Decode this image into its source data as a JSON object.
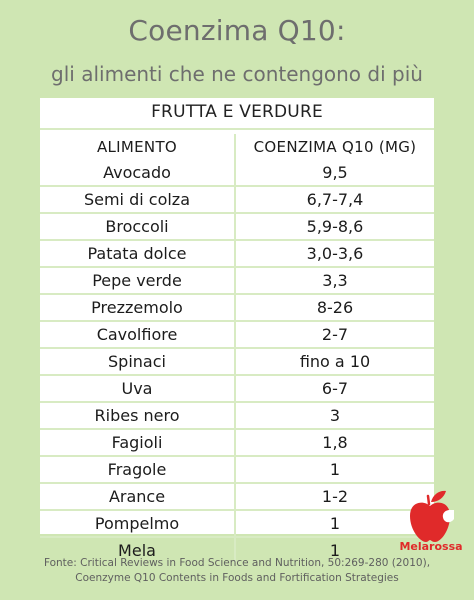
{
  "header": {
    "title": "Coenzima Q10:",
    "subtitle": "gli alimenti che ne contengono di più"
  },
  "table": {
    "section": "FRUTTA E VERDURE",
    "columns": [
      "ALIMENTO",
      "COENZIMA Q10 (MG)"
    ],
    "rows": [
      [
        "Avocado",
        "9,5"
      ],
      [
        "Semi di colza",
        "6,7-7,4"
      ],
      [
        "Broccoli",
        "5,9-8,6"
      ],
      [
        "Patata dolce",
        "3,0-3,6"
      ],
      [
        "Pepe verde",
        "3,3"
      ],
      [
        "Prezzemolo",
        "8-26"
      ],
      [
        "Cavolfiore",
        "2-7"
      ],
      [
        "Spinaci",
        "fino a 10"
      ],
      [
        "Uva",
        "6-7"
      ],
      [
        "Ribes nero",
        "3"
      ],
      [
        "Fagioli",
        "1,8"
      ],
      [
        "Fragole",
        "1"
      ],
      [
        "Arance",
        "1-2"
      ],
      [
        "Pompelmo",
        "1"
      ],
      [
        "Mela",
        "1"
      ]
    ]
  },
  "logo": {
    "brand": "Melarossa",
    "icon": "apple-icon",
    "color": "#e02a2a"
  },
  "source": {
    "line1": "Fonte: Critical Reviews in Food Science and Nutrition, 50:269-280 (2010),",
    "line2": "Coenzyme Q10 Contents in Foods and Fortification Strategies"
  },
  "colors": {
    "background": "#cfe6b3",
    "card": "#ffffff",
    "rule": "#d8ebc3",
    "title": "#6e6e6e"
  }
}
